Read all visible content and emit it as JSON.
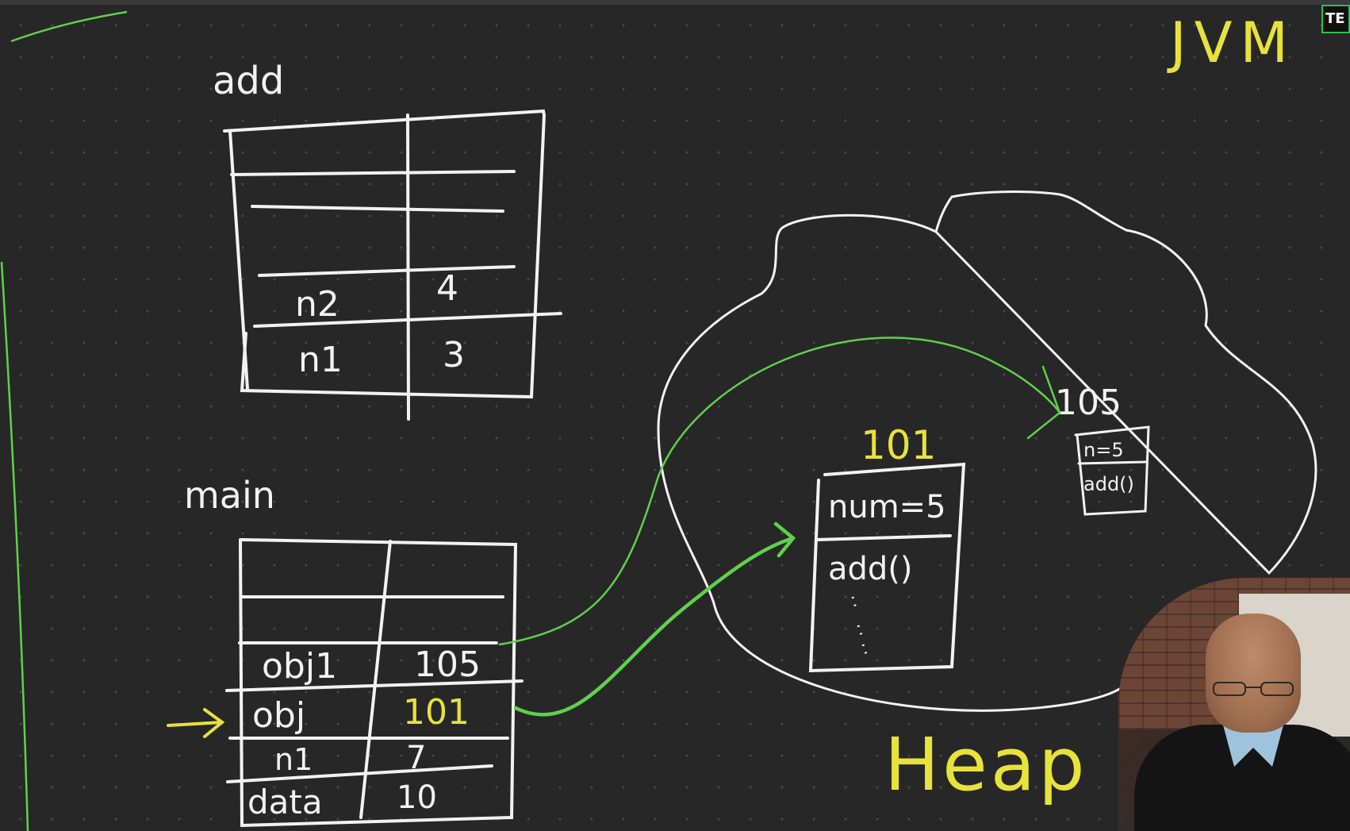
{
  "header": {
    "title": "JVM",
    "badge": "TE"
  },
  "stack": {
    "add": {
      "label": "add",
      "rows": [
        {
          "name": "n2",
          "value": "4"
        },
        {
          "name": "n1",
          "value": "3"
        }
      ]
    },
    "main": {
      "label": "main",
      "rows": [
        {
          "name": "obj1",
          "value": "105"
        },
        {
          "name": "obj",
          "value": "101"
        },
        {
          "name": "n1",
          "value": "7"
        },
        {
          "name": "data",
          "value": "10"
        }
      ]
    }
  },
  "heap": {
    "label": "Heap",
    "objects": [
      {
        "address": "101",
        "fields": [
          "num=5",
          "add()"
        ]
      },
      {
        "address": "105",
        "fields": [
          "n=5",
          "add()"
        ]
      }
    ]
  },
  "colors": {
    "chalk": "#f2f2f2",
    "yellow": "#e8e23a",
    "green": "#5fd14a",
    "background": "#272727"
  },
  "icons": {
    "current_frame_pointer": "arrow-right-icon"
  }
}
